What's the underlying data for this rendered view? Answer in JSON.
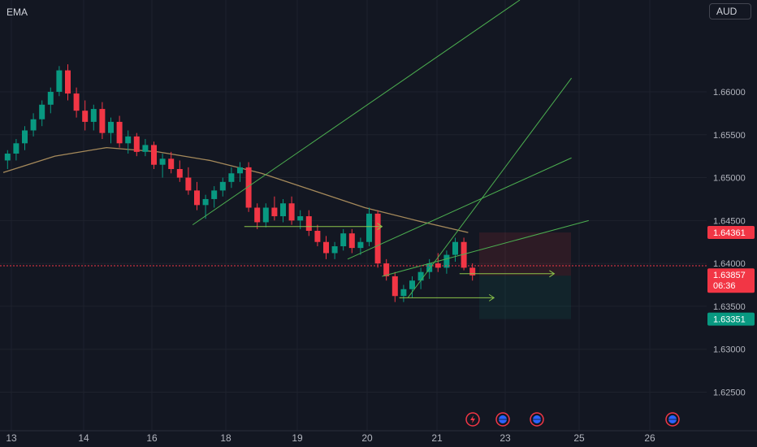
{
  "indicator_label": "EMA",
  "currency": "AUD",
  "price_axis": {
    "ticks": [
      "1.66000",
      "1.65500",
      "1.65000",
      "1.64500",
      "1.64000",
      "1.63500",
      "1.63000",
      "1.62500"
    ],
    "tick_values": [
      1.66,
      1.655,
      1.65,
      1.645,
      1.64,
      1.635,
      1.63,
      1.625
    ],
    "badges": [
      {
        "label": "1.64361",
        "value": 1.64361,
        "color": "#f23645"
      },
      {
        "label": "1.63857",
        "value": 1.63857,
        "sub": "06:36",
        "color": "#f23645"
      },
      {
        "label": "1.63351",
        "value": 1.63351,
        "color": "#089981"
      }
    ]
  },
  "time_axis": {
    "labels": [
      "13",
      "14",
      "16",
      "18",
      "19",
      "20",
      "21",
      "23",
      "25",
      "26"
    ],
    "label_positions": [
      0,
      1,
      2,
      3,
      4,
      5,
      6,
      7,
      8,
      9
    ]
  },
  "event_icons": [
    "flash-icon",
    "globe-icon",
    "globe-icon",
    "globe-icon"
  ],
  "colors": {
    "up": "#089981",
    "down": "#f23645",
    "ema": "#a68a5b",
    "trendline": "#4caf50",
    "background": "#131722",
    "grid": "#1e222d"
  },
  "chart_data": {
    "type": "candlestick",
    "ylim": [
      1.6205,
      1.6707
    ],
    "x_labels": [
      "13",
      "14",
      "16",
      "18",
      "19",
      "20",
      "21",
      "23",
      "25",
      "26"
    ],
    "candles_ohlc": [
      [
        1.652,
        1.6532,
        1.651,
        1.6528
      ],
      [
        1.6528,
        1.6545,
        1.652,
        1.654
      ],
      [
        1.654,
        1.656,
        1.6532,
        1.6555
      ],
      [
        1.6555,
        1.6575,
        1.6548,
        1.6568
      ],
      [
        1.6568,
        1.659,
        1.656,
        1.6585
      ],
      [
        1.6585,
        1.6605,
        1.6575,
        1.66
      ],
      [
        1.66,
        1.663,
        1.6595,
        1.6625
      ],
      [
        1.6625,
        1.6632,
        1.659,
        1.6598
      ],
      [
        1.6598,
        1.6605,
        1.657,
        1.6578
      ],
      [
        1.6578,
        1.659,
        1.6555,
        1.6565
      ],
      [
        1.6565,
        1.6585,
        1.6555,
        1.658
      ],
      [
        1.658,
        1.6588,
        1.6545,
        1.6552
      ],
      [
        1.6552,
        1.657,
        1.654,
        1.6565
      ],
      [
        1.6565,
        1.6572,
        1.6535,
        1.654
      ],
      [
        1.654,
        1.6555,
        1.6528,
        1.6548
      ],
      [
        1.6548,
        1.6552,
        1.6525,
        1.653
      ],
      [
        1.653,
        1.6545,
        1.6525,
        1.6538
      ],
      [
        1.6538,
        1.6542,
        1.651,
        1.6515
      ],
      [
        1.6515,
        1.6528,
        1.65,
        1.6522
      ],
      [
        1.6522,
        1.653,
        1.6505,
        1.651
      ],
      [
        1.651,
        1.652,
        1.6495,
        1.65
      ],
      [
        1.65,
        1.6512,
        1.648,
        1.6485
      ],
      [
        1.6485,
        1.6495,
        1.6462,
        1.6468
      ],
      [
        1.6468,
        1.648,
        1.6452,
        1.6475
      ],
      [
        1.6475,
        1.649,
        1.6465,
        1.6485
      ],
      [
        1.6485,
        1.65,
        1.6478,
        1.6495
      ],
      [
        1.6495,
        1.6512,
        1.6488,
        1.6505
      ],
      [
        1.6505,
        1.6518,
        1.6495,
        1.6512
      ],
      [
        1.6512,
        1.6518,
        1.646,
        1.6465
      ],
      [
        1.6465,
        1.647,
        1.644,
        1.6448
      ],
      [
        1.6448,
        1.647,
        1.6442,
        1.6465
      ],
      [
        1.6465,
        1.6478,
        1.645,
        1.6455
      ],
      [
        1.6455,
        1.6475,
        1.6448,
        1.647
      ],
      [
        1.647,
        1.6478,
        1.6445,
        1.645
      ],
      [
        1.645,
        1.6462,
        1.644,
        1.6455
      ],
      [
        1.6455,
        1.6462,
        1.6432,
        1.6438
      ],
      [
        1.6438,
        1.6445,
        1.642,
        1.6425
      ],
      [
        1.6425,
        1.6432,
        1.6405,
        1.6412
      ],
      [
        1.6412,
        1.6425,
        1.6405,
        1.642
      ],
      [
        1.642,
        1.644,
        1.6415,
        1.6435
      ],
      [
        1.6435,
        1.644,
        1.6412,
        1.6418
      ],
      [
        1.6418,
        1.643,
        1.641,
        1.6425
      ],
      [
        1.6425,
        1.6465,
        1.642,
        1.6458
      ],
      [
        1.6458,
        1.6462,
        1.6395,
        1.64
      ],
      [
        1.64,
        1.6405,
        1.638,
        1.6385
      ],
      [
        1.6385,
        1.639,
        1.6355,
        1.6362
      ],
      [
        1.6362,
        1.6375,
        1.6355,
        1.637
      ],
      [
        1.637,
        1.6385,
        1.636,
        1.638
      ],
      [
        1.638,
        1.6395,
        1.637,
        1.639
      ],
      [
        1.639,
        1.6405,
        1.6382,
        1.64
      ],
      [
        1.64,
        1.6412,
        1.639,
        1.6395
      ],
      [
        1.6395,
        1.6415,
        1.6388,
        1.641
      ],
      [
        1.641,
        1.643,
        1.6402,
        1.6425
      ],
      [
        1.6425,
        1.643,
        1.6392,
        1.6395
      ],
      [
        1.6395,
        1.64,
        1.638,
        1.6386
      ]
    ],
    "ema": [
      [
        0,
        1.6506
      ],
      [
        6,
        1.6525
      ],
      [
        12,
        1.6535
      ],
      [
        18,
        1.653
      ],
      [
        24,
        1.652
      ],
      [
        30,
        1.6505
      ],
      [
        36,
        1.6485
      ],
      [
        42,
        1.6465
      ],
      [
        48,
        1.645
      ],
      [
        54,
        1.6436
      ]
    ],
    "position_box": {
      "entry": 1.63857,
      "stop": 1.64361,
      "target": 1.63351
    },
    "trendlines": [
      {
        "from": [
          22,
          1.6445
        ],
        "to": [
          60,
          1.6707
        ]
      },
      {
        "from": [
          47,
          1.636
        ],
        "to": [
          66,
          1.6616
        ]
      },
      {
        "from": [
          40,
          1.6405
        ],
        "to": [
          66,
          1.6523
        ]
      },
      {
        "from": [
          44,
          1.6385
        ],
        "to": [
          68,
          1.645
        ]
      }
    ],
    "horizontal_levels": [
      {
        "value": 1.6443,
        "from": 28,
        "to": 44
      },
      {
        "value": 1.636,
        "from": 46,
        "to": 57
      },
      {
        "value": 1.6388,
        "from": 53,
        "to": 64
      }
    ]
  }
}
